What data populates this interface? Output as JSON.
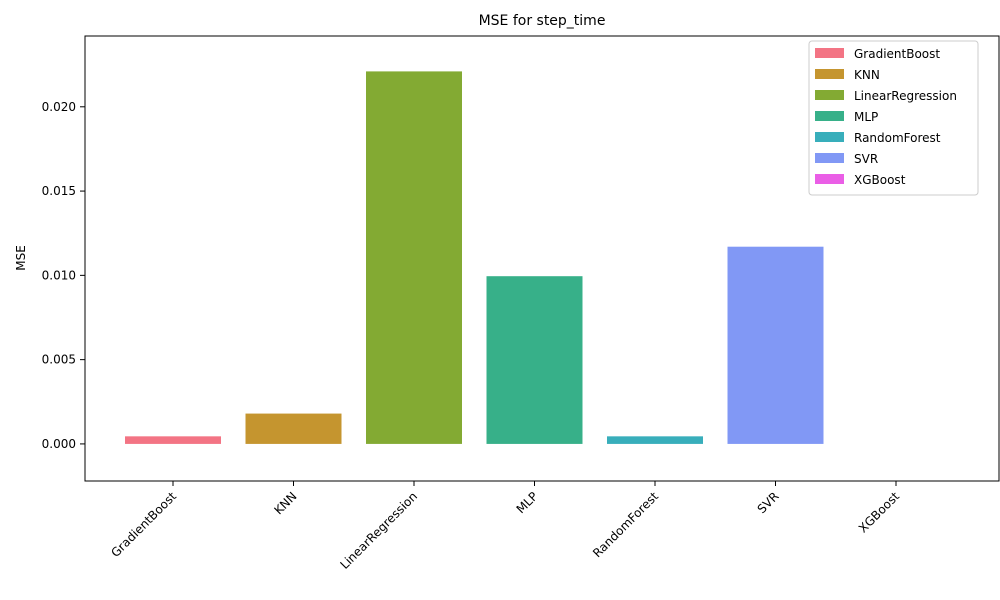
{
  "chart_data": {
    "type": "bar",
    "title": "MSE for step_time",
    "xlabel": "",
    "ylabel": "MSE",
    "categories": [
      "GradientBoost",
      "KNN",
      "LinearRegression",
      "MLP",
      "RandomForest",
      "SVR",
      "XGBoost"
    ],
    "values": [
      0.00045,
      0.0018,
      0.0221,
      0.00995,
      0.00045,
      0.0117,
      0.0
    ],
    "colors": [
      "#f37484",
      "#c5952f",
      "#83aa33",
      "#37b089",
      "#38aebb",
      "#8198f5",
      "#ea5ee6"
    ],
    "ylim": [
      -0.0022,
      0.0242
    ],
    "yticks": [
      0.0,
      0.005,
      0.01,
      0.015,
      0.02
    ],
    "ytick_labels": [
      "0.000",
      "0.005",
      "0.010",
      "0.015",
      "0.020"
    ],
    "grid": false,
    "legend": {
      "position": "top-right",
      "entries": [
        "GradientBoost",
        "KNN",
        "LinearRegression",
        "MLP",
        "RandomForest",
        "SVR",
        "XGBoost"
      ]
    }
  }
}
